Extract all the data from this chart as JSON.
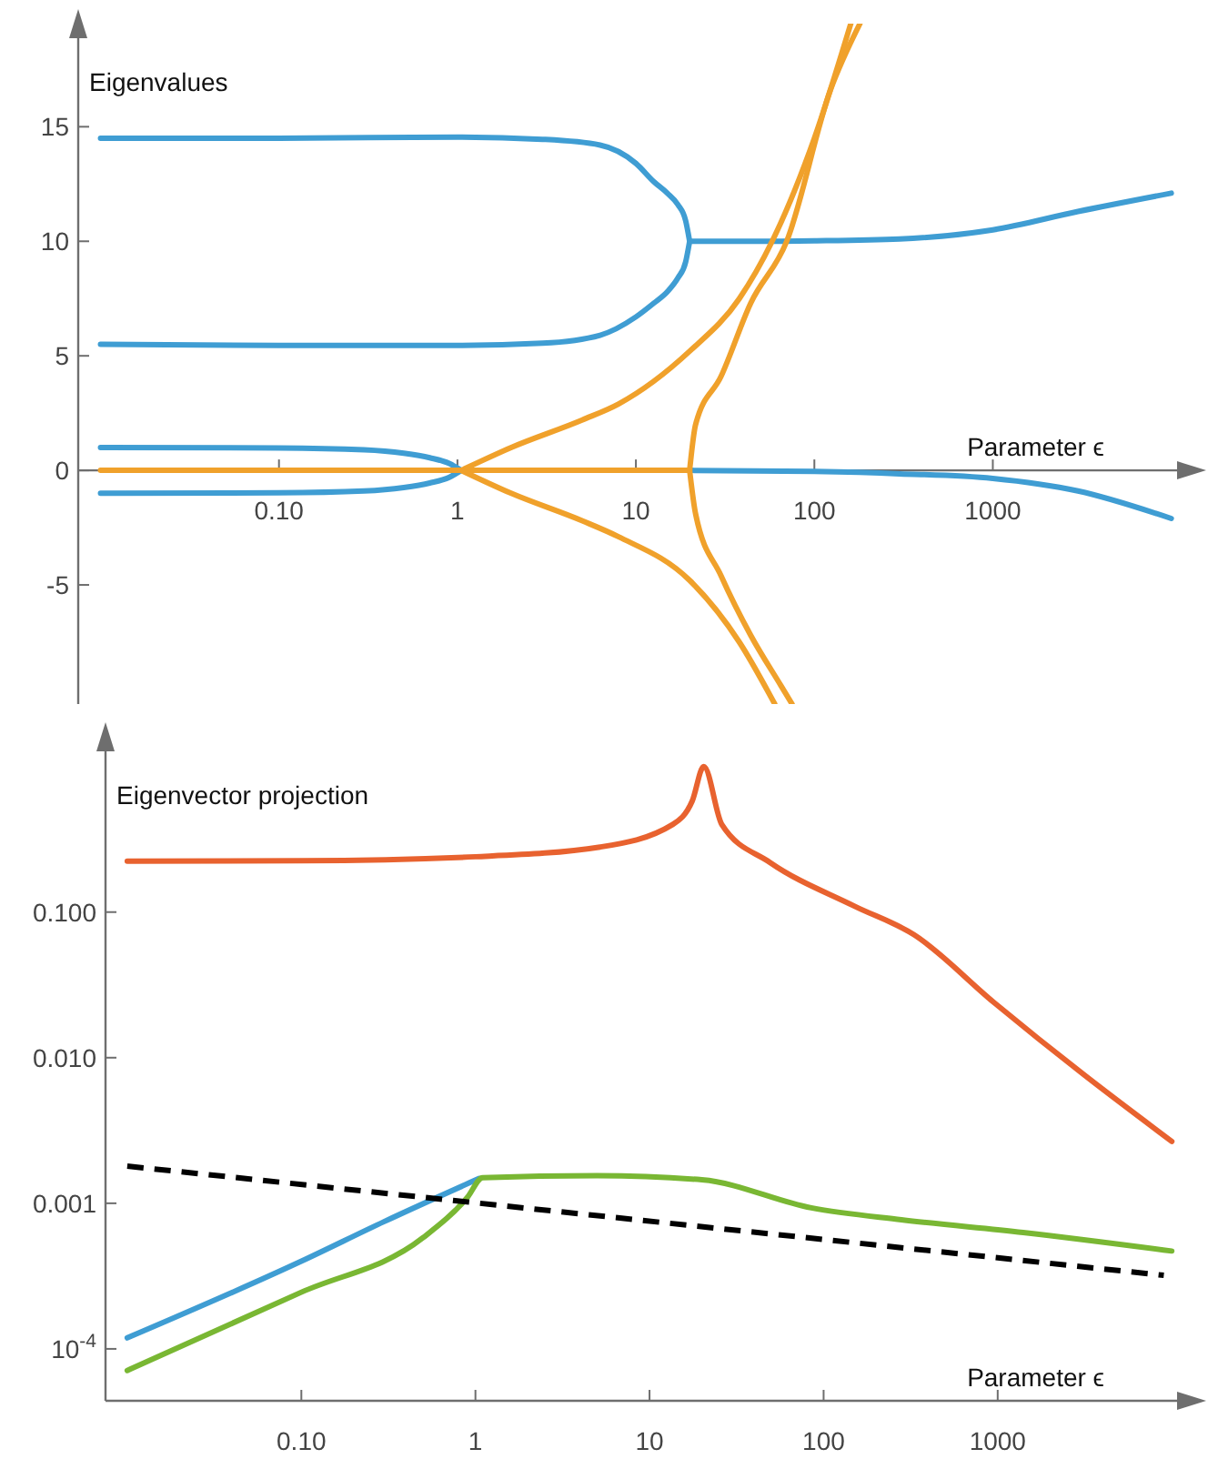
{
  "chart_data": [
    {
      "type": "line",
      "ylabel": "Eigenvalues",
      "xlabel": "Parameter ϵ",
      "log": "x",
      "grid": false,
      "marker": "none",
      "xlim": [
        0.0075,
        13000
      ],
      "xticks": [
        {
          "value": 0.1,
          "label": "0.10"
        },
        1,
        10,
        100,
        1000
      ],
      "ylim": [
        -10.2,
        19.5
      ],
      "yticks": [
        -5,
        0,
        5,
        10,
        15
      ],
      "series": [
        {
          "color": "#3f9dd3",
          "x": [
            0.01,
            0.1,
            1,
            3,
            6.3,
            10,
            12.6,
            15,
            17.2,
            19,
            20
          ],
          "values": [
            14.5,
            14.5,
            14.55,
            14.45,
            14.2,
            13.4,
            12.6,
            12.1,
            11.6,
            10.9,
            10.0
          ]
        },
        {
          "color": "#3f9dd3",
          "x": [
            0.01,
            0.1,
            1,
            3,
            6.3,
            10,
            12.6,
            15,
            17.2,
            19,
            20
          ],
          "values": [
            5.5,
            5.45,
            5.45,
            5.55,
            5.9,
            6.7,
            7.3,
            7.8,
            8.4,
            9.1,
            10.0
          ]
        },
        {
          "color": "#3f9dd3",
          "x": [
            20,
            50,
            100,
            300,
            1000,
            3000,
            10000
          ],
          "values": [
            10.0,
            10.0,
            10.02,
            10.1,
            10.5,
            11.3,
            12.1
          ]
        },
        {
          "color": "#3f9dd3",
          "x": [
            0.01,
            0.1,
            0.3,
            0.5,
            0.7,
            0.9,
            1.05
          ],
          "values": [
            1.0,
            0.98,
            0.9,
            0.75,
            0.55,
            0.3,
            0
          ]
        },
        {
          "color": "#3f9dd3",
          "x": [
            0.01,
            0.1,
            0.3,
            0.5,
            0.7,
            0.9,
            1.05
          ],
          "values": [
            -1.0,
            -0.98,
            -0.9,
            -0.75,
            -0.55,
            -0.3,
            0
          ]
        },
        {
          "color": "#3f9dd3",
          "x": [
            1.05,
            20,
            100,
            300,
            1000,
            3000,
            10000
          ],
          "values": [
            0,
            0,
            -0.05,
            -0.15,
            -0.35,
            -0.9,
            -2.1
          ]
        },
        {
          "color": "#f0a12b",
          "x": [
            0.01,
            20
          ],
          "values": [
            0,
            0
          ]
        },
        {
          "color": "#f0a12b",
          "x": [
            1.05,
            2,
            5,
            8,
            20,
            38,
            58,
            100,
            160
          ],
          "values": [
            0,
            1.0,
            2.2,
            2.9,
            5.2,
            7.5,
            10,
            14.5,
            19.5
          ]
        },
        {
          "color": "#f0a12b",
          "x": [
            1.05,
            2,
            5,
            8,
            20,
            38,
            60
          ],
          "values": [
            0,
            -1.0,
            -2.2,
            -2.9,
            -4.8,
            -7.5,
            -10.2
          ]
        },
        {
          "color": "#f0a12b",
          "x": [
            20,
            21.6,
            30,
            44,
            70,
            123,
            180
          ],
          "values": [
            0,
            2,
            4.1,
            7.3,
            10,
            16.6,
            19.5
          ]
        },
        {
          "color": "#f0a12b",
          "x": [
            20,
            21.6,
            30,
            44,
            65,
            75
          ],
          "values": [
            0,
            -1.9,
            -4.6,
            -7.2,
            -9.4,
            -10.2
          ]
        }
      ]
    },
    {
      "type": "line",
      "ylabel": "Eigenvector projection",
      "xlabel": "Parameter ϵ",
      "log": "xy",
      "grid": false,
      "marker": "none",
      "xlim": [
        0.0075,
        13000
      ],
      "xticks": [
        {
          "value": 0.1,
          "label": "0.10"
        },
        1,
        10,
        100,
        1000
      ],
      "ylim": [
        4.4e-05,
        1.6
      ],
      "yticks": [
        {
          "value": 0.1,
          "label": "0.100"
        },
        {
          "value": 0.01,
          "label": "0.010"
        },
        0.001,
        {
          "value": 0.0001,
          "label": "10$^{-4}$"
        }
      ],
      "series": [
        {
          "color": "#e8622f",
          "x": [
            0.01,
            0.1,
            1,
            5.2,
            13.6,
            17.6,
            20.5,
            26,
            49,
            150,
            330,
            950,
            3100,
            10000
          ],
          "values": [
            0.224,
            0.225,
            0.24,
            0.28,
            0.4,
            0.58,
            1.0,
            0.4,
            0.22,
            0.11,
            0.07,
            0.024,
            0.0077,
            0.00266
          ]
        },
        {
          "color": "#3f9dd3",
          "x": [
            0.01,
            0.1,
            0.3,
            1.05
          ],
          "values": [
            0.000119,
            0.0004,
            0.00075,
            0.00148
          ]
        },
        {
          "color": "#79b733",
          "x": [
            0.01,
            0.1,
            0.5,
            0.9,
            1.1,
            5,
            20,
            85,
            280,
            1400,
            10000
          ],
          "values": [
            7.1e-05,
            0.000245,
            0.00058,
            0.0011,
            0.0015,
            0.00155,
            0.00145,
            0.00093,
            0.00077,
            0.00063,
            0.00047
          ]
        },
        {
          "color": "#000000",
          "line_style": "dashed",
          "x": [
            0.01,
            9000
          ],
          "values": [
            0.0018,
            0.00032
          ]
        }
      ]
    }
  ]
}
